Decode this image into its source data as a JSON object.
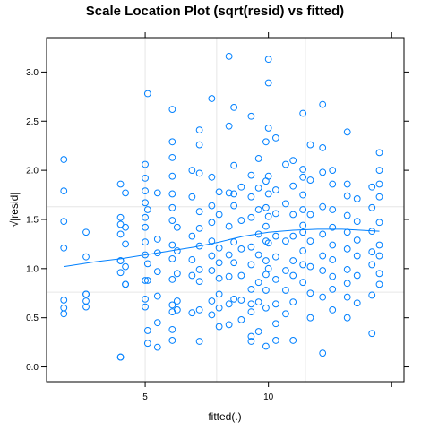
{
  "chart_data": {
    "type": "scatter",
    "title": "Scale Location Plot (sqrt(resid) vs fitted)",
    "xlabel": "fitted(.)",
    "ylabel": "√|resid|",
    "xlim": [
      1.0,
      15.5
    ],
    "ylim": [
      -0.15,
      3.35
    ],
    "x_ticks": [
      5,
      10
    ],
    "y_ticks": [
      0.0,
      0.5,
      1.0,
      1.5,
      2.0,
      2.5,
      3.0
    ],
    "x_tick_labels": [
      "5",
      "10"
    ],
    "y_tick_labels": [
      "0.0",
      "0.5",
      "1.0",
      "1.5",
      "2.0",
      "2.5",
      "3.0"
    ],
    "x_grid": [
      5,
      7.9,
      11.5
    ],
    "y_grid": [
      0.76,
      1.63
    ],
    "grid": true,
    "point_color": "#0080ff",
    "line_color": "#0080ff",
    "points": [
      [
        1.7,
        2.11
      ],
      [
        1.7,
        1.79
      ],
      [
        1.7,
        1.48
      ],
      [
        1.7,
        1.21
      ],
      [
        1.7,
        0.68
      ],
      [
        1.7,
        0.6
      ],
      [
        1.7,
        0.54
      ],
      [
        2.6,
        1.37
      ],
      [
        2.6,
        1.12
      ],
      [
        2.6,
        0.74
      ],
      [
        2.6,
        0.67
      ],
      [
        2.6,
        0.61
      ],
      [
        2.6,
        0.74
      ],
      [
        4.0,
        1.86
      ],
      [
        4.0,
        1.52
      ],
      [
        4.0,
        1.45
      ],
      [
        4.0,
        1.35
      ],
      [
        4.0,
        1.08
      ],
      [
        4.0,
        1.08
      ],
      [
        4.0,
        0.96
      ],
      [
        4.0,
        0.1
      ],
      [
        4.0,
        0.1
      ],
      [
        4.2,
        1.77
      ],
      [
        4.2,
        1.42
      ],
      [
        4.2,
        1.25
      ],
      [
        4.2,
        1.02
      ],
      [
        4.2,
        0.84
      ],
      [
        4.2,
        0.84
      ],
      [
        5.0,
        2.06
      ],
      [
        5.0,
        1.92
      ],
      [
        5.0,
        1.79
      ],
      [
        5.0,
        1.67
      ],
      [
        5.0,
        1.52
      ],
      [
        5.0,
        1.42
      ],
      [
        5.0,
        1.27
      ],
      [
        5.0,
        1.14
      ],
      [
        5.0,
        0.88
      ],
      [
        5.0,
        0.69
      ],
      [
        5.0,
        0.61
      ],
      [
        5.1,
        2.78
      ],
      [
        5.1,
        1.6
      ],
      [
        5.1,
        1.05
      ],
      [
        5.1,
        0.88
      ],
      [
        5.1,
        0.37
      ],
      [
        5.1,
        0.24
      ],
      [
        5.5,
        1.77
      ],
      [
        5.5,
        1.3
      ],
      [
        5.5,
        1.16
      ],
      [
        5.5,
        0.97
      ],
      [
        5.5,
        0.72
      ],
      [
        5.5,
        0.45
      ],
      [
        5.5,
        0.2
      ],
      [
        6.1,
        2.62
      ],
      [
        6.1,
        2.29
      ],
      [
        6.1,
        2.13
      ],
      [
        6.1,
        1.94
      ],
      [
        6.1,
        1.76
      ],
      [
        6.1,
        1.62
      ],
      [
        6.1,
        1.49
      ],
      [
        6.1,
        1.24
      ],
      [
        6.1,
        1.1
      ],
      [
        6.1,
        0.89
      ],
      [
        6.1,
        0.63
      ],
      [
        6.1,
        0.56
      ],
      [
        6.1,
        0.38
      ],
      [
        6.1,
        0.27
      ],
      [
        6.3,
        1.42
      ],
      [
        6.3,
        1.18
      ],
      [
        6.3,
        0.95
      ],
      [
        6.3,
        0.67
      ],
      [
        6.3,
        0.58
      ],
      [
        6.9,
        2.0
      ],
      [
        6.9,
        1.73
      ],
      [
        6.9,
        1.33
      ],
      [
        6.9,
        1.09
      ],
      [
        6.9,
        0.93
      ],
      [
        6.9,
        0.55
      ],
      [
        7.2,
        2.41
      ],
      [
        7.2,
        2.26
      ],
      [
        7.2,
        1.97
      ],
      [
        7.2,
        1.58
      ],
      [
        7.2,
        1.41
      ],
      [
        7.2,
        1.23
      ],
      [
        7.2,
        0.99
      ],
      [
        7.2,
        0.87
      ],
      [
        7.2,
        0.58
      ],
      [
        7.2,
        0.26
      ],
      [
        7.7,
        2.73
      ],
      [
        7.7,
        1.93
      ],
      [
        7.7,
        1.64
      ],
      [
        7.7,
        1.47
      ],
      [
        7.7,
        1.28
      ],
      [
        7.7,
        1.13
      ],
      [
        7.7,
        0.98
      ],
      [
        7.7,
        0.67
      ],
      [
        7.7,
        0.53
      ],
      [
        8.0,
        1.78
      ],
      [
        8.0,
        1.55
      ],
      [
        8.0,
        1.21
      ],
      [
        8.0,
        1.06
      ],
      [
        8.0,
        0.9
      ],
      [
        8.0,
        0.74
      ],
      [
        8.0,
        0.6
      ],
      [
        8.0,
        0.41
      ],
      [
        8.4,
        3.16
      ],
      [
        8.4,
        2.45
      ],
      [
        8.4,
        1.77
      ],
      [
        8.4,
        1.43
      ],
      [
        8.4,
        1.14
      ],
      [
        8.4,
        0.92
      ],
      [
        8.4,
        0.64
      ],
      [
        8.4,
        0.43
      ],
      [
        8.6,
        2.64
      ],
      [
        8.6,
        2.05
      ],
      [
        8.6,
        1.76
      ],
      [
        8.6,
        1.64
      ],
      [
        8.6,
        1.27
      ],
      [
        8.6,
        1.06
      ],
      [
        8.6,
        0.69
      ],
      [
        8.9,
        1.83
      ],
      [
        8.9,
        1.49
      ],
      [
        8.9,
        1.2
      ],
      [
        8.9,
        0.93
      ],
      [
        8.9,
        0.68
      ],
      [
        8.9,
        0.48
      ],
      [
        9.3,
        2.55
      ],
      [
        9.3,
        1.95
      ],
      [
        9.3,
        1.73
      ],
      [
        9.3,
        1.52
      ],
      [
        9.3,
        1.22
      ],
      [
        9.3,
        1.04
      ],
      [
        9.3,
        0.79
      ],
      [
        9.3,
        0.64
      ],
      [
        9.3,
        0.56
      ],
      [
        9.3,
        0.31
      ],
      [
        9.3,
        0.26
      ],
      [
        9.6,
        2.12
      ],
      [
        9.6,
        1.82
      ],
      [
        9.6,
        1.6
      ],
      [
        9.6,
        1.35
      ],
      [
        9.6,
        1.14
      ],
      [
        9.6,
        0.86
      ],
      [
        9.6,
        0.66
      ],
      [
        9.6,
        0.36
      ],
      [
        9.9,
        2.29
      ],
      [
        9.9,
        1.89
      ],
      [
        9.9,
        1.62
      ],
      [
        9.9,
        1.43
      ],
      [
        9.9,
        1.28
      ],
      [
        9.9,
        1.08
      ],
      [
        9.9,
        0.94
      ],
      [
        9.9,
        0.78
      ],
      [
        9.9,
        0.6
      ],
      [
        9.9,
        0.21
      ],
      [
        10.0,
        3.13
      ],
      [
        10.0,
        2.89
      ],
      [
        10.0,
        2.43
      ],
      [
        10.0,
        1.94
      ],
      [
        10.0,
        1.76
      ],
      [
        10.0,
        1.53
      ],
      [
        10.0,
        1.26
      ],
      [
        10.0,
        1.0
      ],
      [
        10.3,
        2.33
      ],
      [
        10.3,
        1.8
      ],
      [
        10.3,
        1.56
      ],
      [
        10.3,
        1.33
      ],
      [
        10.3,
        1.12
      ],
      [
        10.3,
        0.89
      ],
      [
        10.3,
        0.64
      ],
      [
        10.3,
        0.44
      ],
      [
        10.3,
        0.27
      ],
      [
        10.7,
        2.06
      ],
      [
        10.7,
        1.66
      ],
      [
        10.7,
        1.28
      ],
      [
        10.7,
        0.98
      ],
      [
        10.7,
        0.78
      ],
      [
        10.7,
        0.54
      ],
      [
        11.0,
        2.1
      ],
      [
        11.0,
        1.84
      ],
      [
        11.0,
        1.55
      ],
      [
        11.0,
        1.33
      ],
      [
        11.0,
        1.08
      ],
      [
        11.0,
        0.93
      ],
      [
        11.0,
        0.66
      ],
      [
        11.0,
        0.27
      ],
      [
        11.4,
        2.58
      ],
      [
        11.4,
        2.01
      ],
      [
        11.4,
        1.93
      ],
      [
        11.4,
        1.75
      ],
      [
        11.4,
        1.6
      ],
      [
        11.4,
        1.44
      ],
      [
        11.4,
        1.37
      ],
      [
        11.4,
        1.18
      ],
      [
        11.4,
        1.04
      ],
      [
        11.4,
        0.86
      ],
      [
        11.7,
        2.26
      ],
      [
        11.7,
        1.9
      ],
      [
        11.7,
        1.55
      ],
      [
        11.7,
        1.28
      ],
      [
        11.7,
        1.02
      ],
      [
        11.7,
        0.75
      ],
      [
        11.7,
        0.5
      ],
      [
        12.2,
        2.67
      ],
      [
        12.2,
        2.23
      ],
      [
        12.2,
        1.98
      ],
      [
        12.2,
        1.63
      ],
      [
        12.2,
        1.35
      ],
      [
        12.2,
        1.13
      ],
      [
        12.2,
        0.98
      ],
      [
        12.2,
        0.71
      ],
      [
        12.2,
        0.14
      ],
      [
        12.6,
        2.0
      ],
      [
        12.6,
        1.86
      ],
      [
        12.6,
        1.6
      ],
      [
        12.6,
        1.42
      ],
      [
        12.6,
        1.24
      ],
      [
        12.6,
        1.09
      ],
      [
        12.6,
        0.92
      ],
      [
        12.6,
        0.79
      ],
      [
        12.6,
        0.58
      ],
      [
        13.2,
        2.39
      ],
      [
        13.2,
        1.86
      ],
      [
        13.2,
        1.74
      ],
      [
        13.2,
        1.54
      ],
      [
        13.2,
        1.37
      ],
      [
        13.2,
        1.2
      ],
      [
        13.2,
        0.99
      ],
      [
        13.2,
        0.85
      ],
      [
        13.2,
        0.71
      ],
      [
        13.2,
        0.5
      ],
      [
        13.6,
        1.71
      ],
      [
        13.6,
        1.48
      ],
      [
        13.6,
        1.29
      ],
      [
        13.6,
        1.13
      ],
      [
        13.6,
        0.93
      ],
      [
        13.6,
        0.65
      ],
      [
        14.2,
        1.83
      ],
      [
        14.2,
        1.62
      ],
      [
        14.2,
        1.38
      ],
      [
        14.2,
        1.17
      ],
      [
        14.2,
        1.04
      ],
      [
        14.2,
        0.73
      ],
      [
        14.2,
        0.34
      ],
      [
        14.5,
        2.18
      ],
      [
        14.5,
        2.0
      ],
      [
        14.5,
        1.86
      ],
      [
        14.5,
        1.73
      ],
      [
        14.5,
        1.47
      ],
      [
        14.5,
        1.24
      ],
      [
        14.5,
        1.13
      ],
      [
        14.5,
        0.95
      ],
      [
        14.5,
        0.84
      ]
    ],
    "smooth_line": [
      [
        1.7,
        1.02
      ],
      [
        3,
        1.07
      ],
      [
        4,
        1.1
      ],
      [
        5,
        1.14
      ],
      [
        6,
        1.18
      ],
      [
        7,
        1.22
      ],
      [
        8,
        1.27
      ],
      [
        9,
        1.33
      ],
      [
        10,
        1.37
      ],
      [
        11,
        1.39
      ],
      [
        12,
        1.4
      ],
      [
        13,
        1.4
      ],
      [
        14.5,
        1.38
      ]
    ]
  }
}
